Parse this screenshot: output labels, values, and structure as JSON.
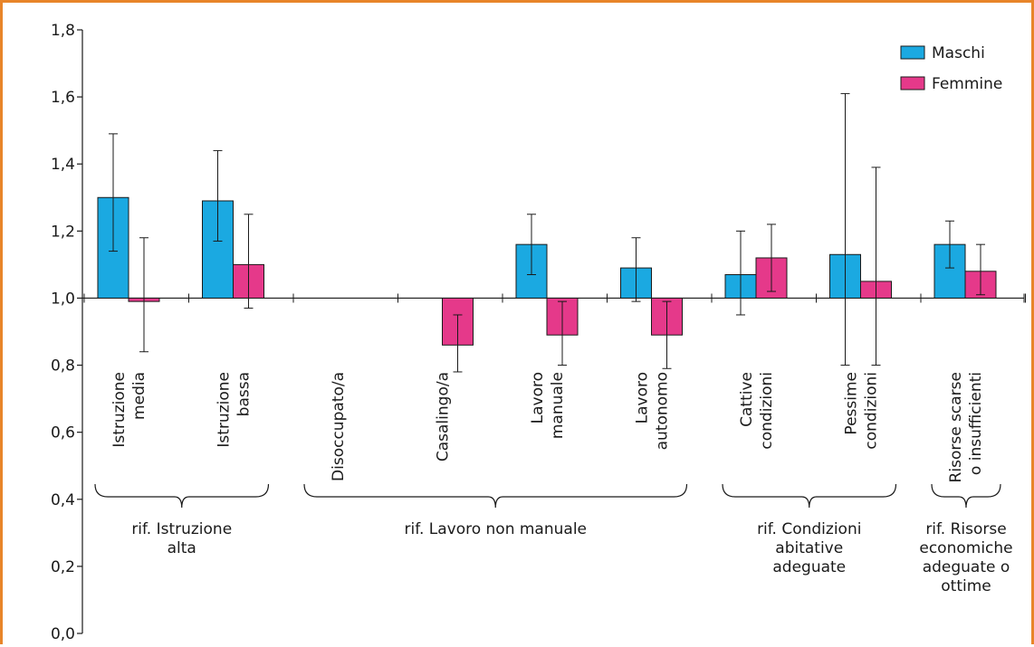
{
  "colors": {
    "frame": "#e8852a",
    "maschi": "#1ba9e1",
    "femmine": "#e5398a",
    "axis": "#1a1a1a"
  },
  "chart_data": {
    "type": "bar",
    "ylim": [
      0,
      1.8
    ],
    "baseline": 1.0,
    "yticks": [
      "0,0",
      "0,2",
      "0,4",
      "0,6",
      "0,8",
      "1,0",
      "1,2",
      "1,4",
      "1,6",
      "1,8"
    ],
    "ytick_values": [
      0,
      0.2,
      0.4,
      0.6,
      0.8,
      1.0,
      1.2,
      1.4,
      1.6,
      1.8
    ],
    "categories": [
      [
        "Istruzione",
        "media"
      ],
      [
        "Istruzione",
        "bassa"
      ],
      [
        "Disoccupato/a"
      ],
      [
        "Casalingo/a"
      ],
      [
        "Lavoro",
        "manuale"
      ],
      [
        "Lavoro",
        "autonomo"
      ],
      [
        "Cattive",
        "condizioni"
      ],
      [
        "Pessime",
        "condizioni"
      ],
      [
        "Risorse scarse",
        "o insufficienti"
      ]
    ],
    "series": [
      {
        "name": "Maschi",
        "values": [
          1.3,
          1.29,
          null,
          null,
          1.16,
          1.09,
          1.07,
          1.13,
          1.16
        ],
        "err_low": [
          1.14,
          1.17,
          null,
          null,
          1.07,
          0.99,
          0.95,
          0.8,
          1.09
        ],
        "err_high": [
          1.49,
          1.44,
          null,
          null,
          1.25,
          1.18,
          1.2,
          1.61,
          1.23
        ]
      },
      {
        "name": "Femmine",
        "values": [
          0.99,
          1.1,
          null,
          0.86,
          0.89,
          0.89,
          1.12,
          1.05,
          1.08
        ],
        "err_low": [
          0.84,
          0.97,
          null,
          0.78,
          0.8,
          0.79,
          1.02,
          0.8,
          1.01
        ],
        "err_high": [
          1.18,
          1.25,
          null,
          0.95,
          0.99,
          0.99,
          1.22,
          1.39,
          1.16
        ]
      }
    ],
    "groups": [
      {
        "lines": [
          "rif. Istruzione",
          "alta"
        ],
        "from": 0,
        "to": 1
      },
      {
        "lines": [
          "rif. Lavoro non manuale"
        ],
        "from": 2,
        "to": 5
      },
      {
        "lines": [
          "rif. Condizioni",
          "abitative",
          "adeguate"
        ],
        "from": 6,
        "to": 7
      },
      {
        "lines": [
          "rif. Risorse",
          "economiche",
          "adeguate o",
          "ottime"
        ],
        "from": 8,
        "to": 8
      }
    ],
    "legend": [
      "Maschi",
      "Femmine"
    ],
    "legend_position": "top-right"
  }
}
